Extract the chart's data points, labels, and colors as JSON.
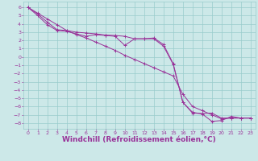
{
  "background_color": "#cce8e8",
  "grid_color": "#99cccc",
  "line_color": "#993399",
  "xlabel": "Windchill (Refroidissement éolien,°C)",
  "xlabel_fontsize": 6.5,
  "ylim": [
    -8.7,
    6.7
  ],
  "xlim": [
    -0.5,
    23.5
  ],
  "xticks": [
    0,
    1,
    2,
    3,
    4,
    5,
    6,
    7,
    8,
    9,
    10,
    11,
    12,
    13,
    14,
    15,
    16,
    17,
    18,
    19,
    20,
    21,
    22,
    23
  ],
  "yticks": [
    6,
    5,
    4,
    3,
    2,
    1,
    0,
    -1,
    -2,
    -3,
    -4,
    -5,
    -6,
    -7,
    -8
  ],
  "line1_x": [
    0,
    1,
    2,
    3,
    4,
    5,
    6,
    7,
    8,
    9,
    10,
    11,
    12,
    13,
    14,
    15,
    16,
    17,
    18,
    19,
    20,
    21,
    22,
    23
  ],
  "line1_y": [
    6.0,
    5.2,
    4.2,
    3.3,
    3.2,
    3.0,
    2.9,
    2.8,
    2.65,
    2.6,
    2.5,
    2.2,
    2.2,
    2.3,
    1.5,
    -0.8,
    -5.5,
    -6.8,
    -6.85,
    -6.8,
    -7.4,
    -7.4,
    -7.4,
    -7.4
  ],
  "line2_x": [
    0,
    1,
    2,
    3,
    4,
    5,
    6,
    7,
    8,
    9,
    10,
    11,
    12,
    13,
    14,
    15,
    16,
    17,
    18,
    19,
    20,
    21,
    22,
    23
  ],
  "line2_y": [
    6.0,
    5.0,
    3.9,
    3.2,
    3.1,
    2.8,
    2.5,
    2.7,
    2.6,
    2.5,
    1.4,
    2.2,
    2.2,
    2.2,
    1.3,
    -0.9,
    -5.5,
    -6.7,
    -6.9,
    -7.8,
    -7.7,
    -7.2,
    -7.4,
    -7.4
  ],
  "line3_x": [
    0,
    1,
    2,
    3,
    4,
    5,
    6,
    7,
    8,
    9,
    10,
    11,
    12,
    13,
    14,
    15,
    16,
    17,
    18,
    19,
    20,
    21,
    22,
    23
  ],
  "line3_y": [
    6.0,
    5.3,
    4.6,
    3.9,
    3.2,
    2.7,
    2.3,
    1.8,
    1.3,
    0.8,
    0.2,
    -0.3,
    -0.8,
    -1.3,
    -1.8,
    -2.3,
    -4.5,
    -6.0,
    -6.5,
    -7.0,
    -7.5,
    -7.4,
    -7.4,
    -7.4
  ]
}
